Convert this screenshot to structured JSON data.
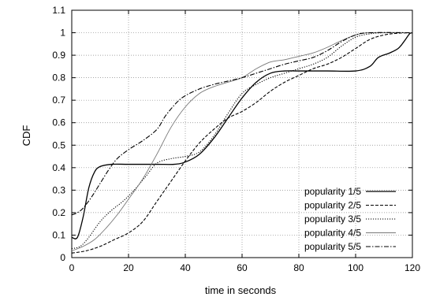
{
  "chart_data": {
    "type": "line",
    "title": "",
    "xlabel": "time in seconds",
    "ylabel": "CDF",
    "xlim": [
      0,
      120
    ],
    "ylim": [
      0,
      1.1
    ],
    "xticks": [
      0,
      20,
      40,
      60,
      80,
      100,
      120
    ],
    "yticks": [
      0,
      0.1,
      0.2,
      0.3,
      0.4,
      0.5,
      0.6,
      0.7,
      0.8,
      0.9,
      1,
      1.1
    ],
    "xtick_labels": [
      "0",
      "20",
      "40",
      "60",
      "80",
      "100",
      "120"
    ],
    "ytick_labels": [
      "0",
      "0.1",
      "0.2",
      "0.3",
      "0.4",
      "0.5",
      "0.6",
      "0.7",
      "0.8",
      "0.9",
      "1",
      "1.1"
    ],
    "grid": true,
    "legend_position": "bottom-right",
    "series": [
      {
        "name": "popularity 1/5",
        "style": "solid",
        "points": [
          [
            0,
            0.09
          ],
          [
            2,
            0.09
          ],
          [
            4,
            0.18
          ],
          [
            6,
            0.31
          ],
          [
            8,
            0.38
          ],
          [
            10,
            0.405
          ],
          [
            14,
            0.415
          ],
          [
            20,
            0.415
          ],
          [
            30,
            0.415
          ],
          [
            36,
            0.415
          ],
          [
            40,
            0.425
          ],
          [
            45,
            0.46
          ],
          [
            50,
            0.53
          ],
          [
            55,
            0.62
          ],
          [
            60,
            0.71
          ],
          [
            65,
            0.78
          ],
          [
            70,
            0.82
          ],
          [
            75,
            0.83
          ],
          [
            80,
            0.83
          ],
          [
            90,
            0.83
          ],
          [
            100,
            0.83
          ],
          [
            105,
            0.85
          ],
          [
            108,
            0.89
          ],
          [
            112,
            0.91
          ],
          [
            115,
            0.93
          ],
          [
            117,
            0.96
          ],
          [
            119,
            0.995
          ],
          [
            120,
            1.0
          ]
        ]
      },
      {
        "name": "popularity 2/5",
        "style": "dashed",
        "points": [
          [
            0,
            0.02
          ],
          [
            5,
            0.03
          ],
          [
            10,
            0.05
          ],
          [
            15,
            0.08
          ],
          [
            20,
            0.11
          ],
          [
            25,
            0.16
          ],
          [
            30,
            0.25
          ],
          [
            35,
            0.34
          ],
          [
            40,
            0.43
          ],
          [
            45,
            0.51
          ],
          [
            50,
            0.57
          ],
          [
            55,
            0.62
          ],
          [
            60,
            0.65
          ],
          [
            65,
            0.69
          ],
          [
            70,
            0.74
          ],
          [
            75,
            0.78
          ],
          [
            80,
            0.81
          ],
          [
            85,
            0.84
          ],
          [
            90,
            0.86
          ],
          [
            95,
            0.89
          ],
          [
            100,
            0.93
          ],
          [
            105,
            0.97
          ],
          [
            110,
            0.99
          ],
          [
            115,
            0.998
          ],
          [
            120,
            1.0
          ]
        ]
      },
      {
        "name": "popularity 3/5",
        "style": "dotted",
        "points": [
          [
            0,
            0.04
          ],
          [
            3,
            0.05
          ],
          [
            6,
            0.09
          ],
          [
            10,
            0.16
          ],
          [
            14,
            0.21
          ],
          [
            18,
            0.25
          ],
          [
            22,
            0.3
          ],
          [
            26,
            0.36
          ],
          [
            30,
            0.42
          ],
          [
            35,
            0.44
          ],
          [
            40,
            0.45
          ],
          [
            45,
            0.47
          ],
          [
            50,
            0.54
          ],
          [
            55,
            0.64
          ],
          [
            60,
            0.73
          ],
          [
            65,
            0.77
          ],
          [
            70,
            0.8
          ],
          [
            75,
            0.82
          ],
          [
            80,
            0.84
          ],
          [
            85,
            0.86
          ],
          [
            90,
            0.89
          ],
          [
            95,
            0.94
          ],
          [
            100,
            0.98
          ],
          [
            105,
            0.995
          ],
          [
            110,
            1.0
          ],
          [
            120,
            1.0
          ]
        ]
      },
      {
        "name": "popularity 4/5",
        "style": "solid-light",
        "points": [
          [
            0,
            0.03
          ],
          [
            4,
            0.05
          ],
          [
            8,
            0.08
          ],
          [
            12,
            0.13
          ],
          [
            16,
            0.19
          ],
          [
            20,
            0.26
          ],
          [
            25,
            0.35
          ],
          [
            30,
            0.46
          ],
          [
            35,
            0.58
          ],
          [
            40,
            0.67
          ],
          [
            45,
            0.73
          ],
          [
            50,
            0.76
          ],
          [
            55,
            0.78
          ],
          [
            60,
            0.8
          ],
          [
            65,
            0.84
          ],
          [
            70,
            0.87
          ],
          [
            75,
            0.88
          ],
          [
            80,
            0.895
          ],
          [
            85,
            0.91
          ],
          [
            90,
            0.935
          ],
          [
            95,
            0.965
          ],
          [
            100,
            0.99
          ],
          [
            105,
            1.0
          ],
          [
            120,
            1.0
          ]
        ]
      },
      {
        "name": "popularity 5/5",
        "style": "dash-dot",
        "points": [
          [
            0,
            0.19
          ],
          [
            2,
            0.2
          ],
          [
            4,
            0.22
          ],
          [
            7,
            0.27
          ],
          [
            10,
            0.33
          ],
          [
            13,
            0.39
          ],
          [
            16,
            0.44
          ],
          [
            20,
            0.48
          ],
          [
            25,
            0.52
          ],
          [
            30,
            0.57
          ],
          [
            33,
            0.63
          ],
          [
            37,
            0.69
          ],
          [
            40,
            0.72
          ],
          [
            45,
            0.75
          ],
          [
            50,
            0.77
          ],
          [
            55,
            0.785
          ],
          [
            60,
            0.8
          ],
          [
            65,
            0.82
          ],
          [
            70,
            0.84
          ],
          [
            75,
            0.86
          ],
          [
            80,
            0.875
          ],
          [
            85,
            0.89
          ],
          [
            90,
            0.92
          ],
          [
            95,
            0.96
          ],
          [
            100,
            0.99
          ],
          [
            105,
            1.0
          ],
          [
            120,
            1.0
          ]
        ]
      }
    ]
  }
}
